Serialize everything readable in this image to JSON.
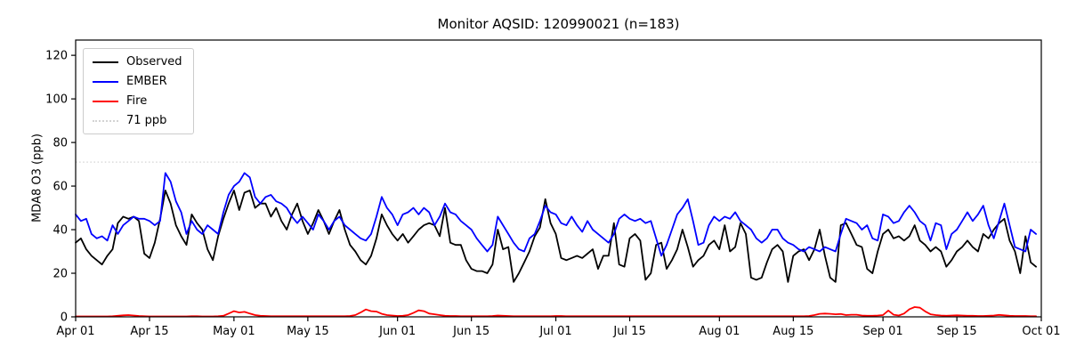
{
  "chart_data": {
    "type": "line",
    "title": "Monitor AQSID: 120990021 (n=183)",
    "xlabel": "",
    "ylabel": "MDA8 O3 (ppb)",
    "n_points": 183,
    "x_start": "Apr 01",
    "x_end": "Oct 01",
    "ylim": [
      0,
      127
    ],
    "yticks": [
      0,
      20,
      40,
      60,
      80,
      100,
      120
    ],
    "x_ticks": [
      {
        "label": "Apr 01",
        "day": 0
      },
      {
        "label": "Apr 15",
        "day": 14
      },
      {
        "label": "May 01",
        "day": 30
      },
      {
        "label": "May 15",
        "day": 44
      },
      {
        "label": "Jun 01",
        "day": 61
      },
      {
        "label": "Jun 15",
        "day": 75
      },
      {
        "label": "Jul 01",
        "day": 91
      },
      {
        "label": "Jul 15",
        "day": 105
      },
      {
        "label": "Aug 01",
        "day": 122
      },
      {
        "label": "Aug 15",
        "day": 136
      },
      {
        "label": "Sep 01",
        "day": 153
      },
      {
        "label": "Sep 15",
        "day": 167
      },
      {
        "label": "Oct 01",
        "day": 183
      }
    ],
    "threshold": {
      "label": "71 ppb",
      "value": 71,
      "color": "#d3d3d3",
      "linestyle": "dotted"
    },
    "grid": false,
    "legend_position": "upper left",
    "series": [
      {
        "name": "Observed",
        "color": "#000000",
        "values": [
          34,
          36,
          31,
          28,
          26,
          24,
          28,
          31,
          43,
          46,
          45,
          46,
          44,
          29,
          27,
          34,
          45,
          58,
          52,
          42,
          37,
          33,
          47,
          43,
          40,
          31,
          26,
          37,
          45,
          52,
          58,
          49,
          57,
          58,
          50,
          52,
          52,
          46,
          50,
          44,
          40,
          47,
          52,
          44,
          38,
          43,
          49,
          44,
          38,
          44,
          49,
          40,
          33,
          30,
          26,
          24,
          28,
          36,
          47,
          42,
          38,
          35,
          38,
          34,
          37,
          40,
          42,
          43,
          42,
          37,
          50,
          34,
          33,
          33,
          26,
          22,
          21,
          21,
          20,
          24,
          40,
          31,
          32,
          16,
          20,
          25,
          30,
          37,
          41,
          54,
          43,
          38,
          27,
          26,
          27,
          28,
          27,
          29,
          31,
          22,
          28,
          28,
          43,
          24,
          23,
          36,
          38,
          35,
          17,
          20,
          33,
          34,
          22,
          26,
          31,
          40,
          32,
          23,
          26,
          28,
          33,
          35,
          31,
          42,
          30,
          32,
          43,
          38,
          18,
          17,
          18,
          25,
          31,
          33,
          30,
          16,
          28,
          30,
          31,
          26,
          31,
          40,
          28,
          18,
          16,
          42,
          43,
          38,
          33,
          32,
          22,
          20,
          30,
          38,
          40,
          36,
          37,
          35,
          37,
          42,
          35,
          33,
          30,
          32,
          30,
          23,
          26,
          30,
          32,
          35,
          32,
          30,
          38,
          36,
          40,
          43,
          45,
          35,
          30,
          20,
          37,
          25,
          23
        ]
      },
      {
        "name": "EMBER",
        "color": "#0000ff",
        "values": [
          47,
          44,
          45,
          38,
          36,
          37,
          35,
          42,
          38,
          42,
          44,
          46,
          45,
          45,
          44,
          42,
          44,
          66,
          62,
          53,
          48,
          38,
          44,
          40,
          38,
          42,
          40,
          38,
          48,
          56,
          60,
          62,
          66,
          64,
          55,
          52,
          55,
          56,
          53,
          52,
          50,
          46,
          43,
          46,
          43,
          40,
          47,
          44,
          40,
          44,
          46,
          42,
          40,
          38,
          36,
          35,
          38,
          46,
          55,
          50,
          47,
          42,
          47,
          48,
          50,
          47,
          50,
          48,
          42,
          46,
          52,
          48,
          47,
          44,
          42,
          40,
          36,
          33,
          30,
          33,
          46,
          42,
          38,
          34,
          31,
          30,
          36,
          38,
          44,
          51,
          48,
          47,
          43,
          42,
          46,
          42,
          39,
          44,
          40,
          38,
          36,
          34,
          38,
          45,
          47,
          45,
          44,
          45,
          43,
          44,
          36,
          28,
          33,
          40,
          47,
          50,
          54,
          44,
          33,
          34,
          42,
          46,
          44,
          46,
          45,
          48,
          44,
          42,
          40,
          36,
          34,
          36,
          40,
          40,
          36,
          34,
          33,
          31,
          30,
          32,
          31,
          30,
          32,
          31,
          30,
          38,
          45,
          44,
          43,
          40,
          42,
          36,
          35,
          47,
          46,
          43,
          44,
          48,
          51,
          48,
          44,
          42,
          35,
          43,
          42,
          31,
          38,
          40,
          44,
          48,
          44,
          47,
          51,
          42,
          36,
          44,
          52,
          42,
          32,
          31,
          30,
          40,
          38
        ]
      },
      {
        "name": "Fire",
        "color": "#ff0000",
        "values": [
          0.2,
          0.2,
          0.2,
          0.2,
          0.2,
          0.2,
          0.2,
          0.3,
          0.5,
          0.7,
          0.8,
          0.6,
          0.4,
          0.3,
          0.2,
          0.2,
          0.2,
          0.2,
          0.2,
          0.2,
          0.2,
          0.2,
          0.3,
          0.3,
          0.2,
          0.2,
          0.2,
          0.3,
          0.5,
          1.5,
          2.6,
          2.0,
          2.3,
          1.5,
          0.8,
          0.5,
          0.4,
          0.3,
          0.3,
          0.3,
          0.3,
          0.3,
          0.3,
          0.3,
          0.3,
          0.3,
          0.3,
          0.3,
          0.3,
          0.3,
          0.3,
          0.3,
          0.4,
          0.8,
          2.0,
          3.4,
          2.6,
          2.4,
          1.4,
          0.8,
          0.6,
          0.4,
          0.5,
          0.8,
          1.8,
          3.0,
          2.6,
          1.5,
          1.2,
          0.8,
          0.5,
          0.4,
          0.4,
          0.3,
          0.3,
          0.3,
          0.3,
          0.3,
          0.3,
          0.4,
          0.6,
          0.5,
          0.4,
          0.3,
          0.3,
          0.3,
          0.3,
          0.3,
          0.3,
          0.3,
          0.3,
          0.4,
          0.4,
          0.3,
          0.3,
          0.3,
          0.3,
          0.3,
          0.3,
          0.3,
          0.3,
          0.3,
          0.3,
          0.3,
          0.3,
          0.3,
          0.3,
          0.3,
          0.3,
          0.3,
          0.3,
          0.3,
          0.3,
          0.3,
          0.3,
          0.3,
          0.3,
          0.3,
          0.3,
          0.3,
          0.3,
          0.3,
          0.3,
          0.3,
          0.3,
          0.3,
          0.3,
          0.3,
          0.3,
          0.3,
          0.3,
          0.3,
          0.3,
          0.3,
          0.3,
          0.3,
          0.3,
          0.3,
          0.3,
          0.4,
          0.8,
          1.4,
          1.5,
          1.4,
          1.2,
          1.3,
          0.8,
          1.0,
          1.0,
          0.6,
          0.5,
          0.5,
          0.6,
          0.8,
          2.9,
          1.0,
          0.6,
          1.5,
          3.5,
          4.5,
          4.2,
          2.5,
          1.2,
          0.8,
          0.6,
          0.5,
          0.6,
          0.7,
          0.6,
          0.5,
          0.5,
          0.4,
          0.4,
          0.5,
          0.6,
          0.9,
          0.7,
          0.5,
          0.4,
          0.4,
          0.4,
          0.3,
          0.3
        ]
      }
    ]
  },
  "legend": {
    "items": [
      {
        "label": "Observed",
        "color": "#000000",
        "style": "solid"
      },
      {
        "label": "EMBER",
        "color": "#0000ff",
        "style": "solid"
      },
      {
        "label": "Fire",
        "color": "#ff0000",
        "style": "solid"
      },
      {
        "label": "71 ppb",
        "color": "#d3d3d3",
        "style": "dotted"
      }
    ]
  }
}
